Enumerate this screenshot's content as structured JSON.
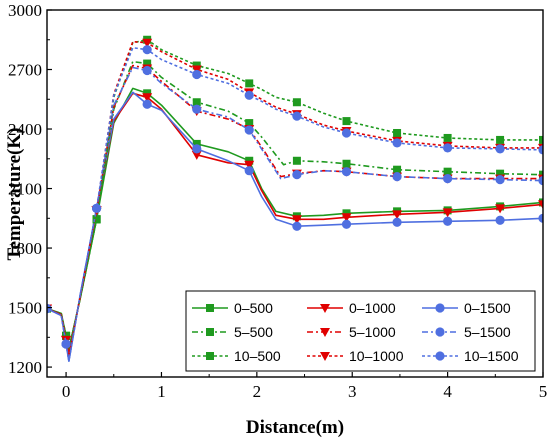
{
  "chart_data": {
    "type": "line",
    "xlabel": "Distance(m)",
    "ylabel": "Temperature(K)",
    "xlim": [
      -0.2,
      5
    ],
    "ylim": [
      1150,
      3000
    ],
    "x_ticks": [
      0,
      1,
      2,
      3,
      4,
      5
    ],
    "y_ticks": [
      1200,
      1500,
      1800,
      2100,
      2400,
      2700,
      3000
    ],
    "legend": {
      "location": "bottom-right",
      "columns": 3
    },
    "series": [
      {
        "name": "0–500",
        "color": "#1f9a1f",
        "dash": "solid",
        "marker": "square",
        "x": [
          -0.2,
          -0.05,
          0.03,
          0.15,
          0.32,
          0.5,
          0.7,
          0.85,
          1.0,
          1.37,
          1.7,
          1.92,
          2.05,
          2.2,
          2.42,
          2.7,
          2.94,
          3.47,
          4.0,
          4.55,
          5.0
        ],
        "y": [
          1495,
          1470,
          1290,
          1550,
          1945,
          2430,
          2605,
          2580,
          2520,
          2325,
          2285,
          2240,
          2100,
          1985,
          1960,
          1965,
          1975,
          1985,
          1990,
          2010,
          2030
        ]
      },
      {
        "name": "0–1000",
        "color": "#e00000",
        "dash": "solid",
        "marker": "triangle-down",
        "x": [
          -0.2,
          -0.05,
          0.03,
          0.15,
          0.32,
          0.5,
          0.7,
          0.85,
          1.0,
          1.37,
          1.7,
          1.92,
          2.05,
          2.2,
          2.42,
          2.7,
          2.94,
          3.47,
          4.0,
          4.55,
          5.0
        ],
        "y": [
          1495,
          1465,
          1260,
          1560,
          1990,
          2440,
          2580,
          2560,
          2500,
          2270,
          2230,
          2220,
          2090,
          1965,
          1945,
          1945,
          1955,
          1970,
          1980,
          2000,
          2020
        ]
      },
      {
        "name": "0–1500",
        "color": "#4f6fe0",
        "dash": "solid",
        "marker": "circle",
        "x": [
          -0.2,
          -0.05,
          0.03,
          0.15,
          0.32,
          0.5,
          0.7,
          0.85,
          1.0,
          1.37,
          1.7,
          1.92,
          2.05,
          2.2,
          2.42,
          2.7,
          2.94,
          3.47,
          4.0,
          4.55,
          5.0
        ],
        "y": [
          1495,
          1460,
          1230,
          1570,
          2000,
          2450,
          2585,
          2525,
          2495,
          2300,
          2240,
          2190,
          2060,
          1945,
          1910,
          1915,
          1920,
          1930,
          1935,
          1940,
          1950
        ]
      },
      {
        "name": "5–500",
        "color": "#1f9a1f",
        "dash": "dashdot",
        "marker": "square",
        "x": [
          -0.2,
          -0.05,
          0.03,
          0.15,
          0.32,
          0.5,
          0.7,
          0.85,
          1.0,
          1.37,
          1.7,
          1.92,
          2.05,
          2.28,
          2.42,
          2.7,
          2.94,
          3.47,
          4.0,
          4.55,
          5.0
        ],
        "y": [
          1495,
          1470,
          1290,
          1550,
          1945,
          2500,
          2740,
          2730,
          2660,
          2535,
          2490,
          2430,
          2360,
          2220,
          2240,
          2235,
          2225,
          2195,
          2185,
          2175,
          2170
        ]
      },
      {
        "name": "5–1000",
        "color": "#e00000",
        "dash": "dashdot",
        "marker": "triangle-down",
        "x": [
          -0.2,
          -0.05,
          0.03,
          0.15,
          0.32,
          0.5,
          0.7,
          0.85,
          1.0,
          1.37,
          1.7,
          1.92,
          2.05,
          2.25,
          2.42,
          2.7,
          2.94,
          3.47,
          4.0,
          4.55,
          5.0
        ],
        "y": [
          1495,
          1465,
          1260,
          1560,
          1990,
          2510,
          2720,
          2705,
          2640,
          2490,
          2450,
          2400,
          2310,
          2160,
          2175,
          2190,
          2185,
          2160,
          2150,
          2150,
          2150
        ]
      },
      {
        "name": "5–1500",
        "color": "#4f6fe0",
        "dash": "dashdot",
        "marker": "circle",
        "x": [
          -0.2,
          -0.05,
          0.03,
          0.15,
          0.32,
          0.5,
          0.7,
          0.85,
          1.0,
          1.37,
          1.7,
          1.92,
          2.05,
          2.25,
          2.42,
          2.7,
          2.94,
          3.47,
          4.0,
          4.55,
          5.0
        ],
        "y": [
          1495,
          1460,
          1230,
          1570,
          2000,
          2520,
          2710,
          2695,
          2630,
          2500,
          2460,
          2395,
          2300,
          2150,
          2170,
          2190,
          2185,
          2160,
          2150,
          2145,
          2140
        ]
      },
      {
        "name": "10–500",
        "color": "#1f9a1f",
        "dash": "short",
        "marker": "square",
        "x": [
          -0.2,
          -0.05,
          0.03,
          0.15,
          0.32,
          0.5,
          0.7,
          0.85,
          1.0,
          1.37,
          1.7,
          1.92,
          2.05,
          2.2,
          2.42,
          2.7,
          2.94,
          3.47,
          4.0,
          4.55,
          5.0
        ],
        "y": [
          1495,
          1470,
          1290,
          1550,
          1945,
          2560,
          2835,
          2850,
          2800,
          2720,
          2680,
          2630,
          2600,
          2560,
          2535,
          2480,
          2440,
          2380,
          2355,
          2345,
          2345
        ]
      },
      {
        "name": "10–1000",
        "color": "#e00000",
        "dash": "short",
        "marker": "triangle-down",
        "x": [
          -0.2,
          -0.05,
          0.03,
          0.15,
          0.32,
          0.5,
          0.7,
          0.85,
          1.0,
          1.37,
          1.7,
          1.92,
          2.05,
          2.2,
          2.42,
          2.7,
          2.94,
          3.47,
          4.0,
          4.55,
          5.0
        ],
        "y": [
          1495,
          1465,
          1260,
          1560,
          1990,
          2575,
          2840,
          2835,
          2790,
          2700,
          2650,
          2585,
          2550,
          2510,
          2475,
          2420,
          2390,
          2340,
          2315,
          2305,
          2305
        ]
      },
      {
        "name": "10–1500",
        "color": "#4f6fe0",
        "dash": "short",
        "marker": "circle",
        "x": [
          -0.2,
          -0.05,
          0.03,
          0.15,
          0.32,
          0.5,
          0.7,
          0.85,
          1.0,
          1.37,
          1.7,
          1.92,
          2.05,
          2.2,
          2.42,
          2.7,
          2.94,
          3.47,
          4.0,
          4.55,
          5.0
        ],
        "y": [
          1495,
          1460,
          1230,
          1570,
          2000,
          2570,
          2810,
          2800,
          2750,
          2675,
          2630,
          2570,
          2540,
          2500,
          2465,
          2410,
          2380,
          2330,
          2305,
          2300,
          2295
        ]
      }
    ],
    "marker_x": [
      -0.2,
      0.0,
      0.32,
      0.85,
      1.37,
      1.92,
      2.42,
      2.94,
      3.47,
      4.0,
      4.55,
      5.0
    ]
  }
}
